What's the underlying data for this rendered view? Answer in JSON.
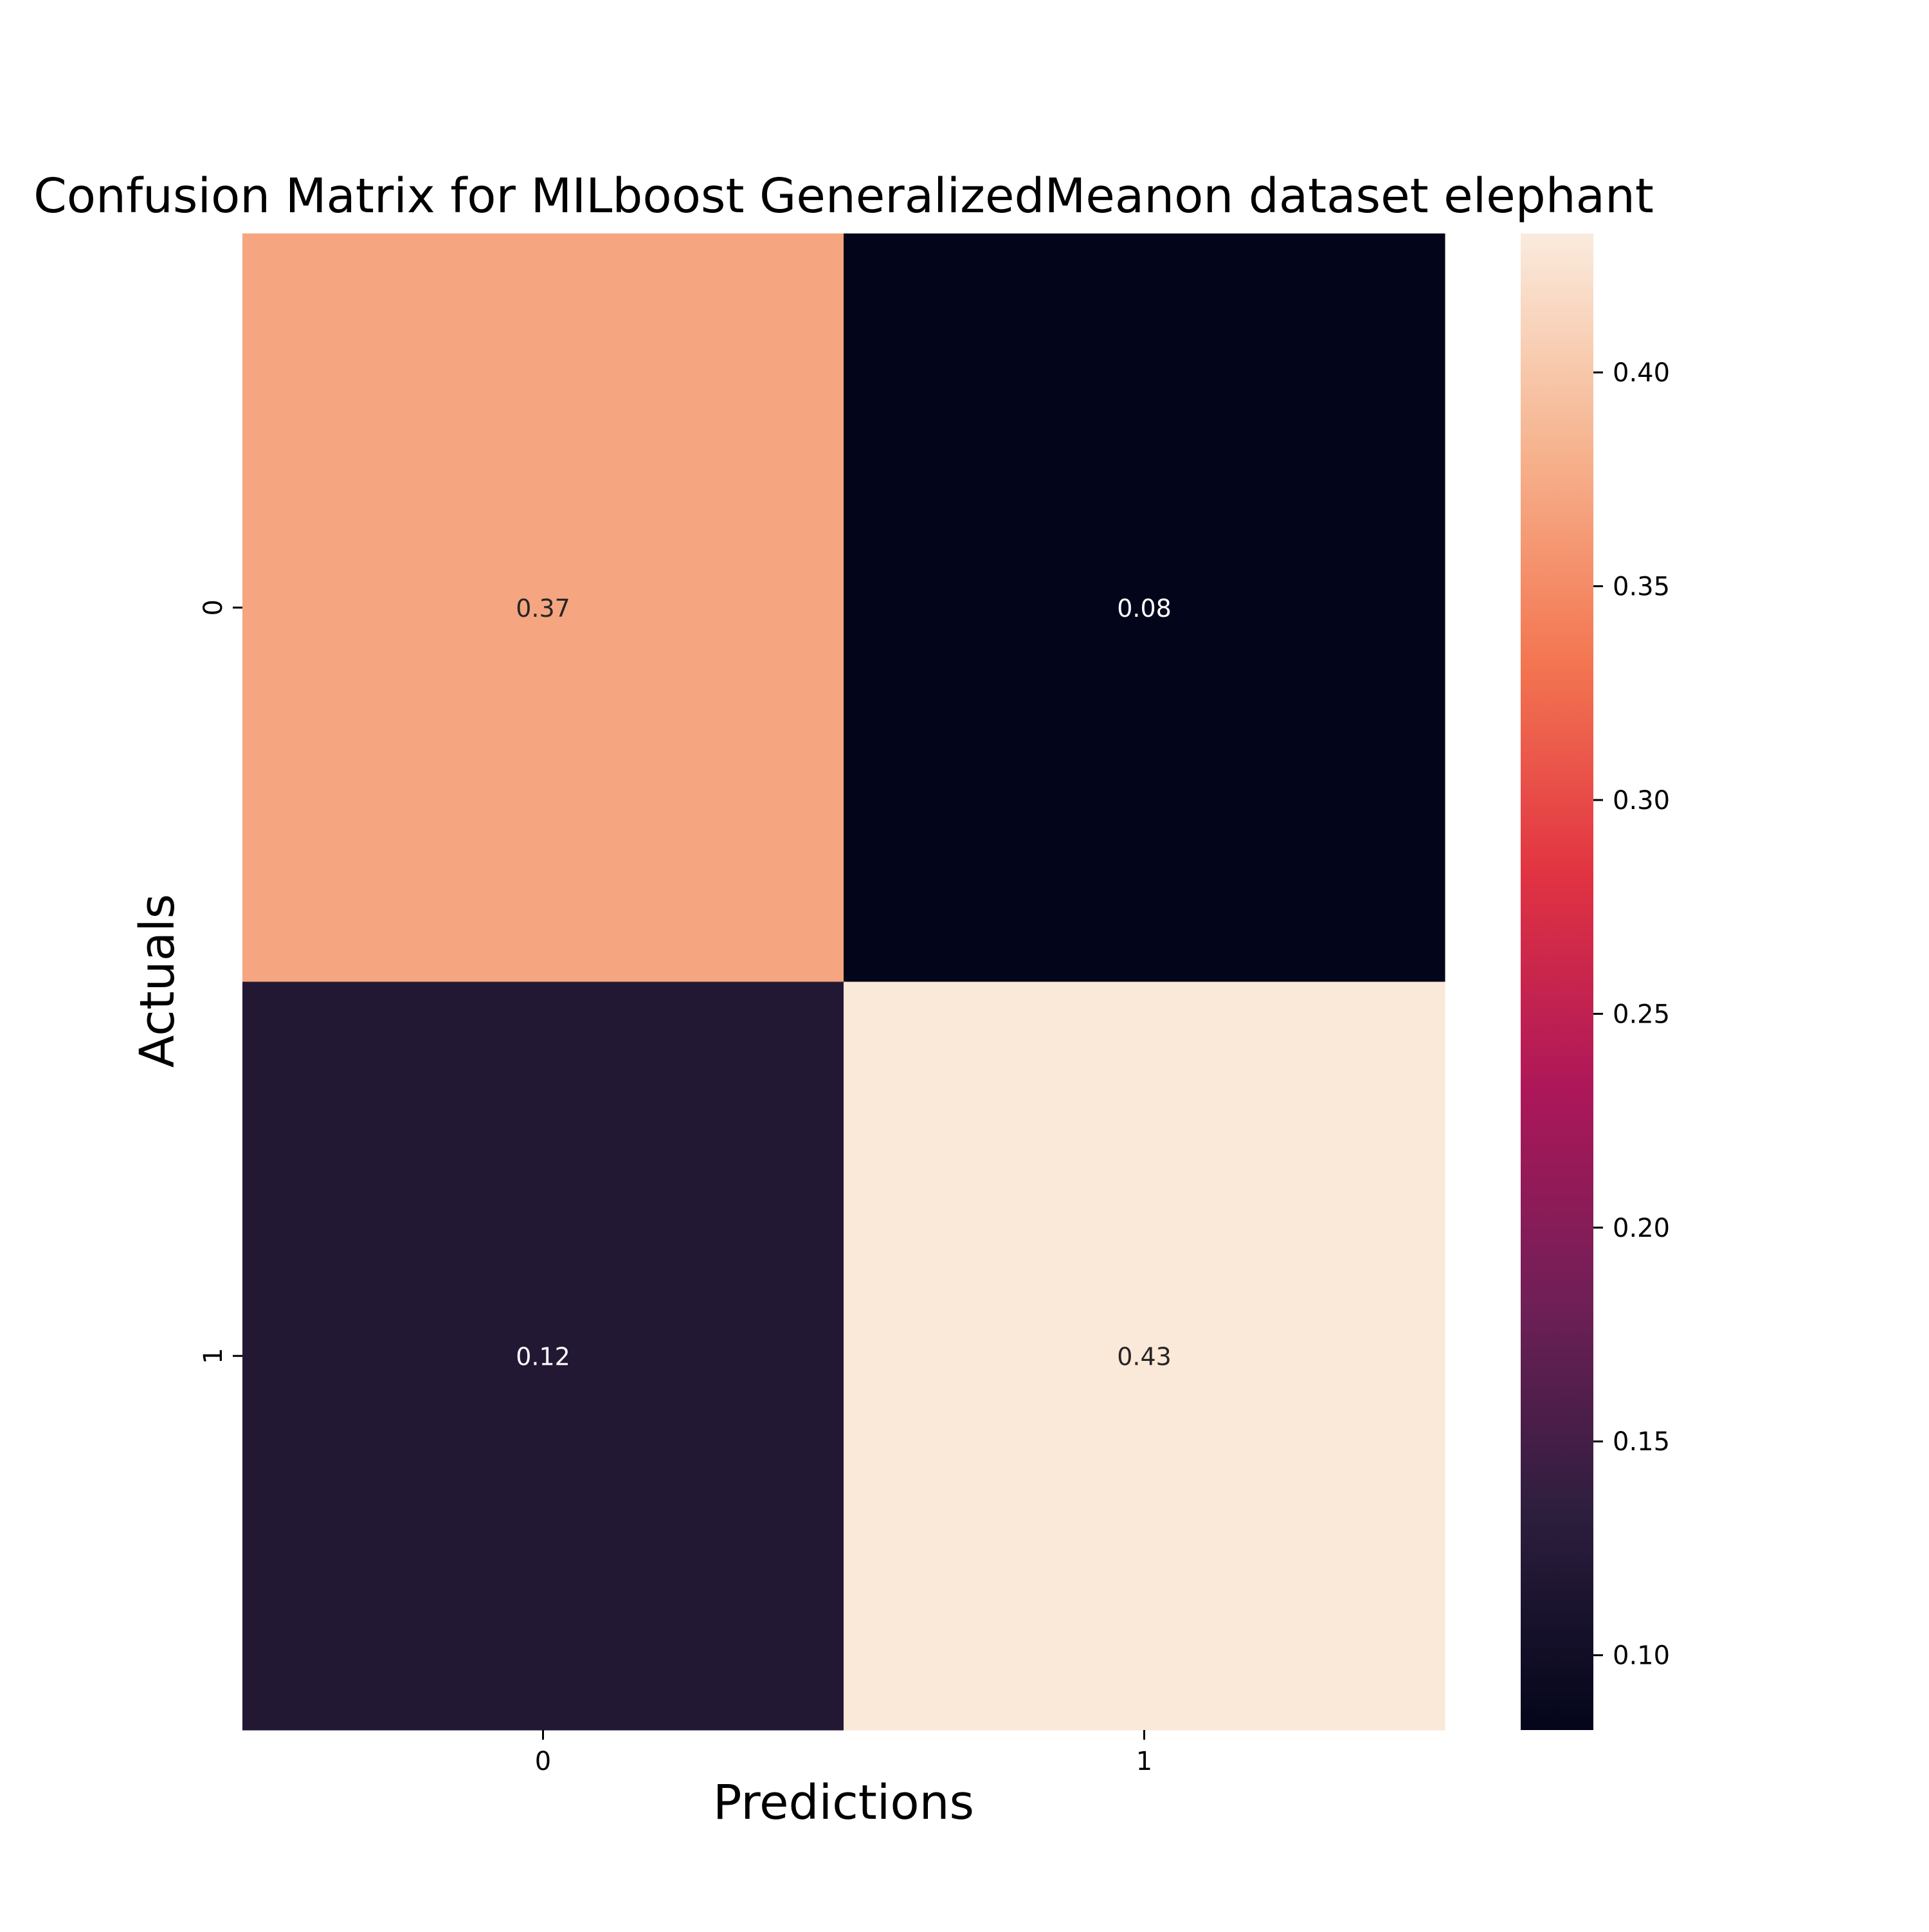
{
  "chart_data": {
    "type": "heatmap",
    "title": "Confusion Matrix for MILboost GeneralizedMeanon dataset elephant",
    "xlabel": "Predictions",
    "ylabel": "Actuals",
    "x_categories": [
      "0",
      "1"
    ],
    "y_categories": [
      "0",
      "1"
    ],
    "values": [
      [
        0.37,
        0.08
      ],
      [
        0.12,
        0.43
      ]
    ],
    "cell_labels": [
      [
        "0.37",
        "0.08"
      ],
      [
        "0.12",
        "0.43"
      ]
    ],
    "colorbar": {
      "min": 0.0825,
      "max": 0.4325,
      "ticks": [
        0.1,
        0.15,
        0.2,
        0.25,
        0.3,
        0.35,
        0.4
      ],
      "tick_labels": [
        "0.10",
        "0.15",
        "0.20",
        "0.25",
        "0.30",
        "0.35",
        "0.40"
      ],
      "colormap": "rocket",
      "stops": [
        "#03051a",
        "#2c1e3d",
        "#701f57",
        "#ad1759",
        "#e13342",
        "#f37651",
        "#f6b48f",
        "#faebdd"
      ]
    },
    "grid": false,
    "legend": "colorbar-right"
  }
}
